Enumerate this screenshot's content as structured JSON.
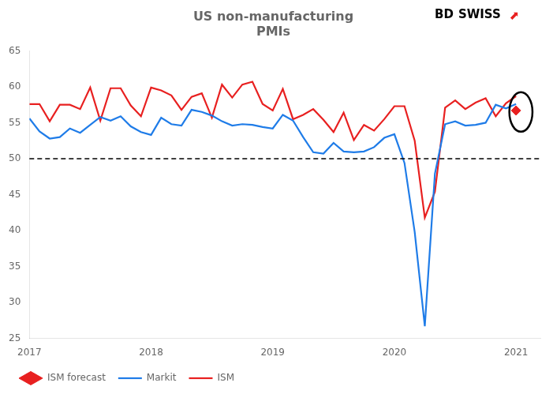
{
  "chart_data": {
    "type": "line",
    "title": "US non-manufacturing\nPMIs",
    "annotations": [
      "BD",
      "SWISS",
      "⬆"
    ],
    "x": [
      2017.0,
      2017.083,
      2017.167,
      2017.25,
      2017.333,
      2017.417,
      2017.5,
      2017.583,
      2017.667,
      2017.75,
      2017.833,
      2017.917,
      2018.0,
      2018.083,
      2018.167,
      2018.25,
      2018.333,
      2018.417,
      2018.5,
      2018.583,
      2018.667,
      2018.75,
      2018.833,
      2018.917,
      2019.0,
      2019.083,
      2019.167,
      2019.25,
      2019.333,
      2019.417,
      2019.5,
      2019.583,
      2019.667,
      2019.75,
      2019.833,
      2019.917,
      2020.0,
      2020.083,
      2020.167,
      2020.25,
      2020.333,
      2020.417,
      2020.5,
      2020.583,
      2020.667,
      2020.75,
      2020.833,
      2020.917,
      2021.0
    ],
    "series": [
      {
        "name": "Markit",
        "color": "#1f7ce8",
        "values": [
          55.6,
          53.8,
          52.8,
          53.0,
          54.2,
          53.6,
          54.7,
          55.8,
          55.3,
          55.9,
          54.5,
          53.7,
          53.3,
          55.7,
          54.8,
          54.6,
          56.8,
          56.5,
          56.0,
          55.2,
          54.6,
          54.8,
          54.7,
          54.4,
          54.2,
          56.1,
          55.3,
          53.0,
          50.9,
          50.7,
          52.2,
          51.0,
          50.9,
          51.0,
          51.6,
          52.9,
          53.4,
          49.4,
          39.8,
          26.7,
          47.9,
          54.8,
          55.2,
          54.6,
          54.7,
          55.0,
          57.5,
          57.0,
          57.6
        ]
      },
      {
        "name": "ISM",
        "color": "#e82020",
        "values": [
          57.6,
          57.6,
          55.2,
          57.5,
          57.5,
          56.9,
          59.9,
          55.3,
          59.8,
          59.8,
          57.4,
          55.9,
          59.9,
          59.5,
          58.8,
          56.8,
          58.6,
          59.1,
          55.7,
          60.3,
          58.5,
          60.3,
          60.7,
          57.6,
          56.7,
          59.7,
          55.5,
          56.1,
          56.9,
          55.4,
          53.7,
          56.4,
          52.6,
          54.7,
          53.9,
          55.5,
          57.3,
          57.3,
          52.5,
          41.8,
          45.4,
          57.1,
          58.1,
          56.9,
          57.8,
          58.4,
          55.9,
          57.7,
          58.7
        ]
      },
      {
        "name": "ISM forecast",
        "color": "#e82020",
        "type": "scatter",
        "marker": "diamond",
        "x": [
          2021.0
        ],
        "values": [
          56.7
        ]
      }
    ],
    "hline": 50,
    "ellipse": {
      "x": 2021.04,
      "y": 56.5,
      "width": 0.19,
      "height": 5.5
    },
    "xlim": [
      2017,
      2021.2
    ],
    "xticks": [
      2017,
      2018,
      2019,
      2020,
      2021
    ],
    "ylim": [
      25,
      65
    ],
    "yticks": [
      25,
      30,
      35,
      40,
      45,
      50,
      55,
      60,
      65
    ],
    "grid": false,
    "legend": "lower left"
  }
}
